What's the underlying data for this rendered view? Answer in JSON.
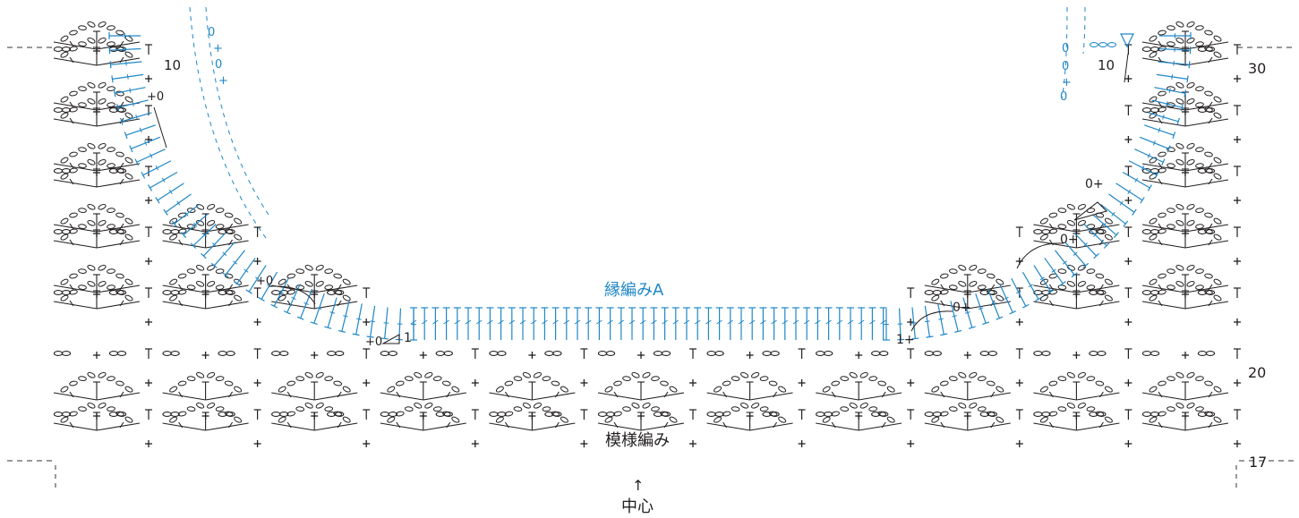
{
  "labels": {
    "edging_label": "縁編みA",
    "pattern_label": "模様編み",
    "center_label": "中心",
    "center_arrow": "↑",
    "row_30": "30",
    "row_20": "20",
    "row_17": "17",
    "left_row_10": "10",
    "right_row_10": "10",
    "left_plus0": "+0",
    "right_0plus": "0+",
    "mark_plus0_a": "+0",
    "mark_1_left": "1",
    "mark_1_right": "1",
    "mark_plus_right": "1+",
    "mark_0plus_low": "0+",
    "mark_0plus_mid": "0+",
    "left_zero": "0",
    "left_plus_top": "+",
    "right_zero_top": "0",
    "right_plus_top": "+"
  },
  "colors": {
    "ink": "#231f20",
    "edging": "#1f87c7",
    "dashed": "#333333"
  },
  "symbols": {
    "chain": "chain-oval",
    "single_crochet": "plus-sign",
    "double_crochet": "t-stitch",
    "fasten_off": "triangle-marker"
  }
}
